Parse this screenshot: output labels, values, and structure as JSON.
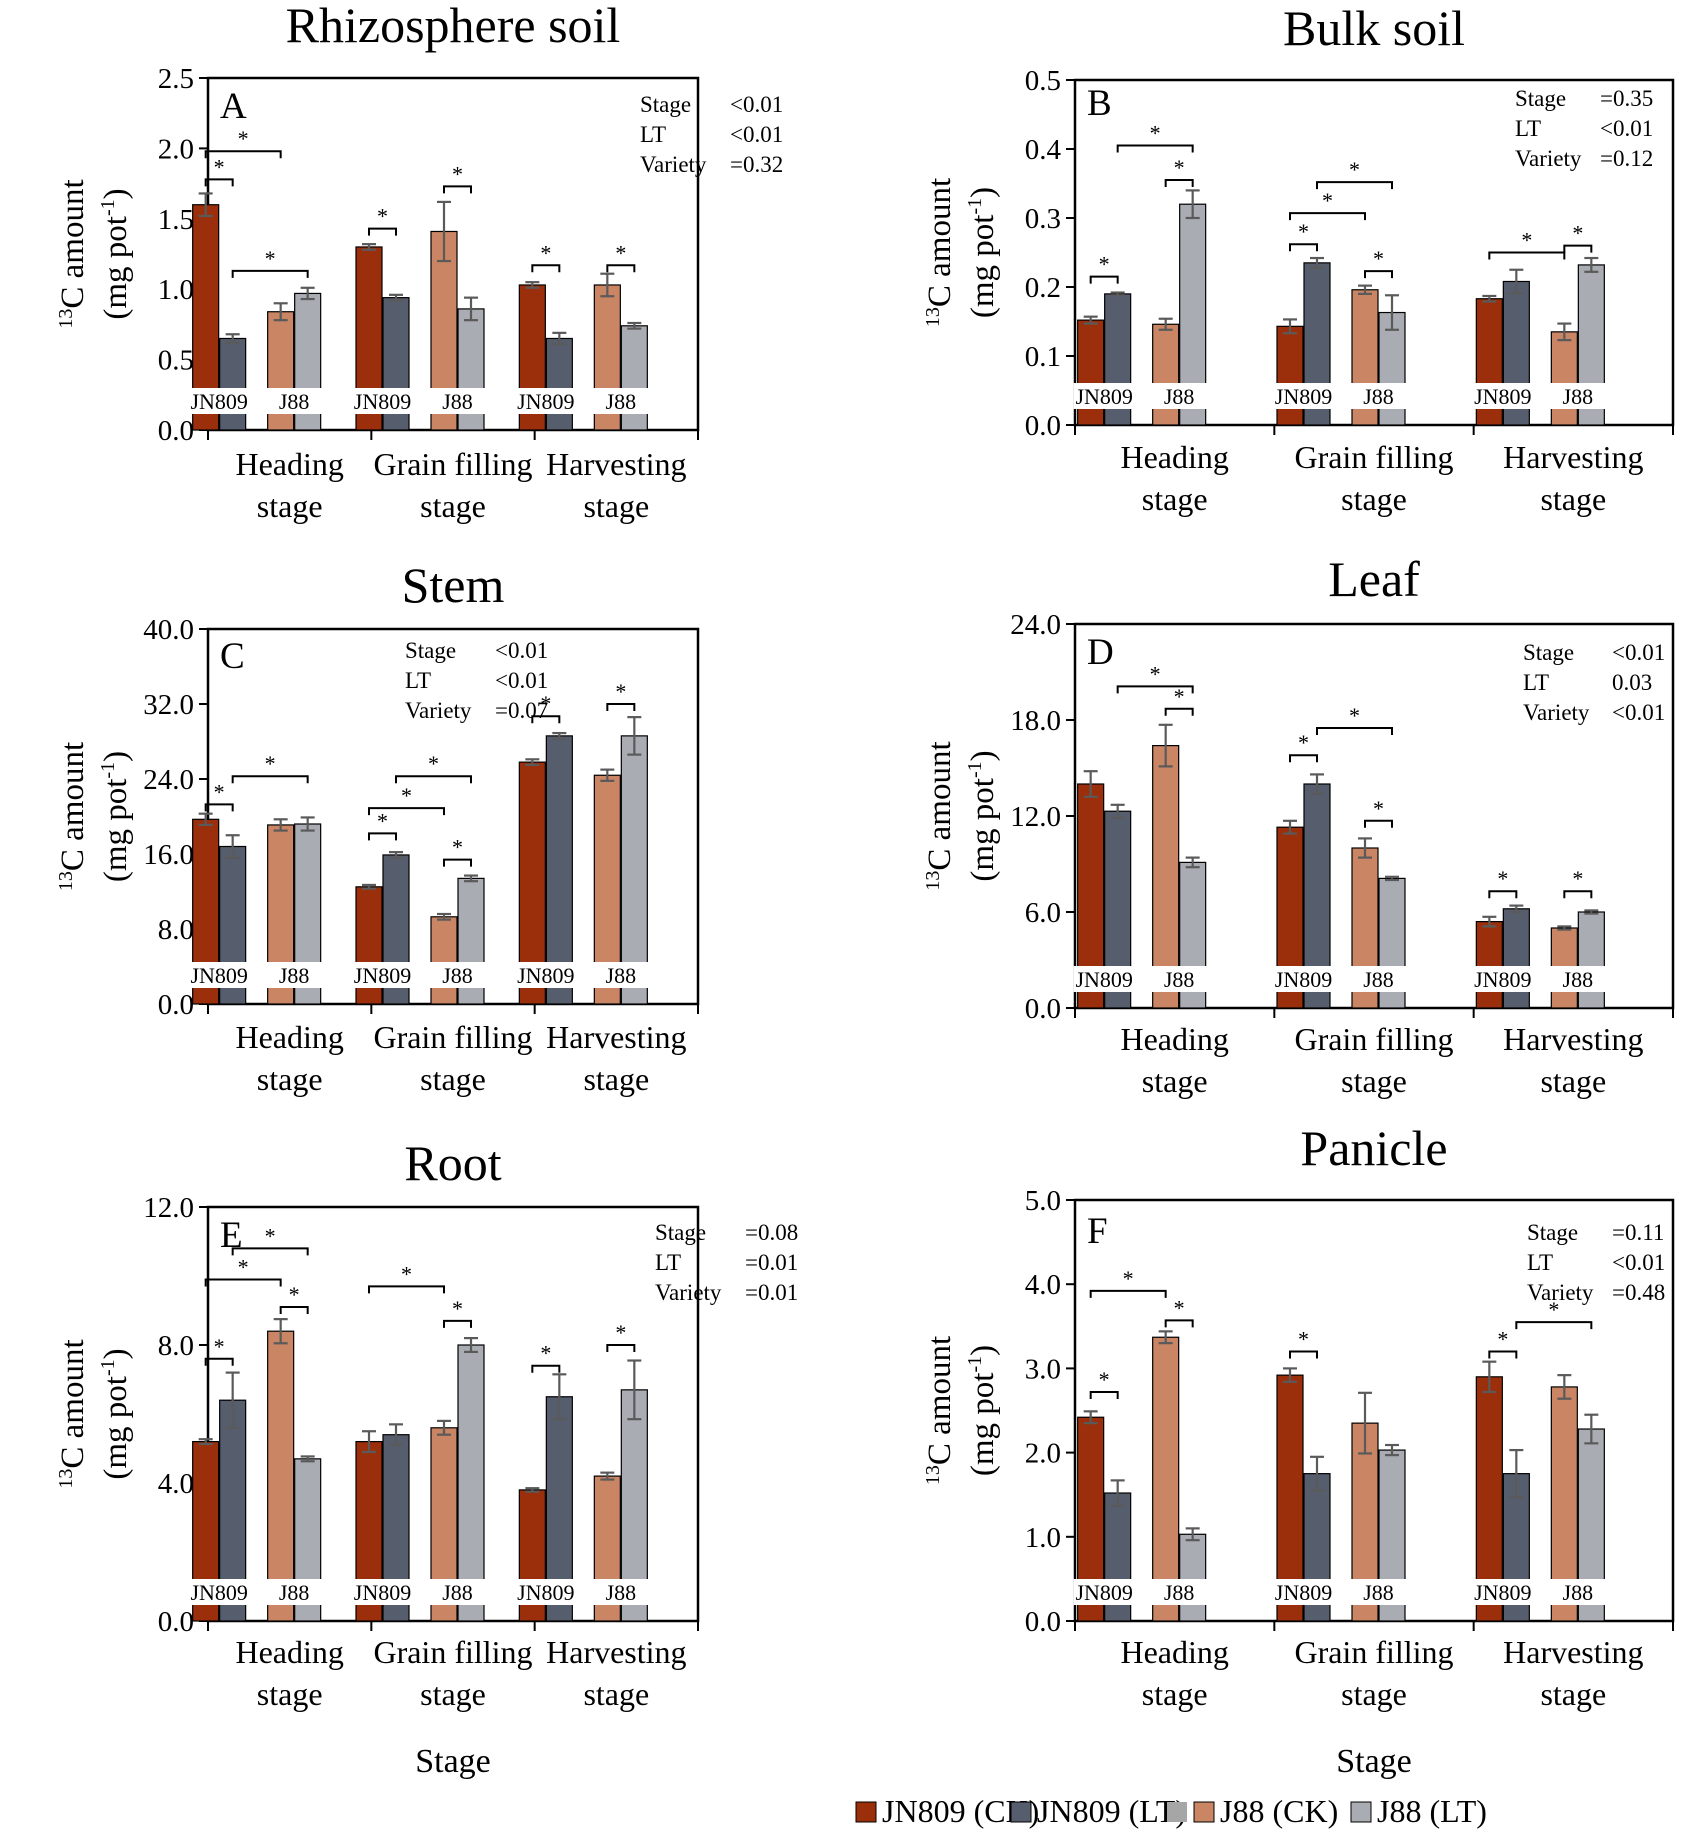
{
  "legend": [
    {
      "label": "JN809 (CK)",
      "color": "#9B2F0B"
    },
    {
      "label": "JN809 (LT)",
      "color": "#565D6D"
    },
    {
      "label": "",
      "color": "#A6A6A6"
    },
    {
      "label": "J88 (CK)",
      "color": "#C98564"
    },
    {
      "label": "J88 (LT)",
      "color": "#A9ACB3"
    }
  ],
  "chart_data": [
    {
      "type": "bar",
      "letter": "A",
      "title": "Rhizosphere soil",
      "ylabel_prefix": "13",
      "ylabel_main": "C amount",
      "ylabel_unit": "(mg pot",
      "ylabel_exp": "-1",
      "ylabel_close": ")",
      "xlabel": "",
      "ylim": [
        0,
        2.5
      ],
      "yticks": [
        "0.0",
        "0.5",
        "1.0",
        "1.5",
        "2.0",
        "2.5"
      ],
      "categories": [
        [
          "Heading",
          "stage"
        ],
        [
          "Grain filling",
          "stage"
        ],
        [
          "Harvesting",
          "stage"
        ]
      ],
      "variety_labels": [
        "JN809",
        "J88"
      ],
      "series": [
        {
          "name": "JN809 (CK)",
          "values": [
            1.6,
            1.3,
            1.03
          ],
          "errors": [
            0.08,
            0.02,
            0.02
          ]
        },
        {
          "name": "JN809 (LT)",
          "values": [
            0.65,
            0.94,
            0.65
          ],
          "errors": [
            0.03,
            0.02,
            0.04
          ]
        },
        {
          "name": "J88 (CK)",
          "values": [
            0.84,
            1.41,
            1.03
          ],
          "errors": [
            0.06,
            0.21,
            0.08
          ]
        },
        {
          "name": "J88 (LT)",
          "values": [
            0.97,
            0.86,
            0.74
          ],
          "errors": [
            0.04,
            0.08,
            0.02
          ]
        }
      ],
      "stats": [
        {
          "label": "Stage",
          "value": "<0.01"
        },
        {
          "label": "LT",
          "value": "<0.01"
        },
        {
          "label": "Variety",
          "value": "=0.32"
        }
      ],
      "significance": [
        {
          "group": 0,
          "from": 0,
          "to": 1,
          "y": 1.78,
          "label": "*"
        },
        {
          "group": 0,
          "from": 0,
          "to": 2,
          "y": 1.98,
          "label": "*"
        },
        {
          "group": 0,
          "from": 1,
          "to": 3,
          "y": 1.13,
          "label": "*"
        },
        {
          "group": 1,
          "from": 0,
          "to": 1,
          "y": 1.43,
          "label": "*"
        },
        {
          "group": 1,
          "from": 2,
          "to": 3,
          "y": 1.73,
          "label": "*"
        },
        {
          "group": 2,
          "from": 0,
          "to": 1,
          "y": 1.17,
          "label": "*"
        },
        {
          "group": 2,
          "from": 2,
          "to": 3,
          "y": 1.17,
          "label": "*"
        }
      ]
    },
    {
      "type": "bar",
      "letter": "B",
      "title": "Bulk soil",
      "ylabel_prefix": "13",
      "ylabel_main": "C amount",
      "ylabel_unit": "(mg pot",
      "ylabel_exp": "-1",
      "ylabel_close": ")",
      "xlabel": "",
      "ylim": [
        0,
        0.5
      ],
      "yticks": [
        "0.0",
        "0.1",
        "0.2",
        "0.3",
        "0.4",
        "0.5"
      ],
      "categories": [
        [
          "Heading",
          "stage"
        ],
        [
          "Grain filling",
          "stage"
        ],
        [
          "Harvesting",
          "stage"
        ]
      ],
      "variety_labels": [
        "JN809",
        "J88"
      ],
      "series": [
        {
          "name": "JN809 (CK)",
          "values": [
            0.152,
            0.143,
            0.183
          ],
          "errors": [
            0.005,
            0.01,
            0.004
          ]
        },
        {
          "name": "JN809 (LT)",
          "values": [
            0.19,
            0.235,
            0.208
          ],
          "errors": [
            0.002,
            0.007,
            0.017
          ]
        },
        {
          "name": "J88 (CK)",
          "values": [
            0.146,
            0.196,
            0.135
          ],
          "errors": [
            0.008,
            0.006,
            0.012
          ]
        },
        {
          "name": "J88 (LT)",
          "values": [
            0.32,
            0.163,
            0.232
          ],
          "errors": [
            0.02,
            0.025,
            0.01
          ]
        }
      ],
      "stats": [
        {
          "label": "Stage",
          "value": "=0.35"
        },
        {
          "label": "LT",
          "value": "<0.01"
        },
        {
          "label": "Variety",
          "value": "=0.12"
        }
      ],
      "significance": [
        {
          "group": 0,
          "from": 0,
          "to": 1,
          "y": 0.215,
          "label": "*"
        },
        {
          "group": 0,
          "from": 2,
          "to": 3,
          "y": 0.355,
          "label": "*"
        },
        {
          "group": 0,
          "from": 1,
          "to": 3,
          "y": 0.405,
          "label": "*"
        },
        {
          "group": 1,
          "from": 0,
          "to": 1,
          "y": 0.262,
          "label": "*"
        },
        {
          "group": 1,
          "from": 2,
          "to": 3,
          "y": 0.223,
          "label": "*"
        },
        {
          "group": 1,
          "from": 0,
          "to": 2,
          "y": 0.307,
          "label": "*"
        },
        {
          "group": 1,
          "from": 1,
          "to": 3,
          "y": 0.352,
          "label": "*"
        },
        {
          "group": 2,
          "from": 0,
          "to": 2,
          "y": 0.25,
          "label": "*"
        },
        {
          "group": 2,
          "from": 2,
          "to": 3,
          "y": 0.26,
          "label": "*"
        }
      ]
    },
    {
      "type": "bar",
      "letter": "C",
      "title": "Stem",
      "ylabel_prefix": "13",
      "ylabel_main": "C amount",
      "ylabel_unit": "(mg pot",
      "ylabel_exp": "-1",
      "ylabel_close": ")",
      "xlabel": "",
      "ylim": [
        0,
        40
      ],
      "yticks": [
        "0.0",
        "8.0",
        "16.0",
        "24.0",
        "32.0",
        "40.0"
      ],
      "categories": [
        [
          "Heading",
          "stage"
        ],
        [
          "Grain filling",
          "stage"
        ],
        [
          "Harvesting",
          "stage"
        ]
      ],
      "variety_labels": [
        "JN809",
        "J88"
      ],
      "series": [
        {
          "name": "JN809 (CK)",
          "values": [
            19.7,
            12.5,
            25.8
          ],
          "errors": [
            0.6,
            0.2,
            0.3
          ]
        },
        {
          "name": "JN809 (LT)",
          "values": [
            16.8,
            15.9,
            28.6
          ],
          "errors": [
            1.2,
            0.3,
            0.3
          ]
        },
        {
          "name": "J88 (CK)",
          "values": [
            19.1,
            9.3,
            24.4
          ],
          "errors": [
            0.6,
            0.3,
            0.6
          ]
        },
        {
          "name": "J88 (LT)",
          "values": [
            19.2,
            13.4,
            28.6
          ],
          "errors": [
            0.7,
            0.3,
            2.0
          ]
        }
      ],
      "stats": [
        {
          "label": "Stage",
          "value": "<0.01"
        },
        {
          "label": "LT",
          "value": "<0.01"
        },
        {
          "label": "Variety",
          "value": "=0.07"
        }
      ],
      "significance": [
        {
          "group": 0,
          "from": 0,
          "to": 1,
          "y": 21.3,
          "label": "*"
        },
        {
          "group": 0,
          "from": 1,
          "to": 3,
          "y": 24.3,
          "label": "*"
        },
        {
          "group": 1,
          "from": 0,
          "to": 1,
          "y": 18.2,
          "label": "*"
        },
        {
          "group": 1,
          "from": 0,
          "to": 2,
          "y": 20.9,
          "label": "*"
        },
        {
          "group": 1,
          "from": 1,
          "to": 3,
          "y": 24.3,
          "label": "*"
        },
        {
          "group": 1,
          "from": 2,
          "to": 3,
          "y": 15.4,
          "label": "*"
        },
        {
          "group": 2,
          "from": 0,
          "to": 1,
          "y": 30.7,
          "label": "*"
        },
        {
          "group": 2,
          "from": 2,
          "to": 3,
          "y": 32.0,
          "label": "*"
        }
      ]
    },
    {
      "type": "bar",
      "letter": "D",
      "title": "Leaf",
      "ylabel_prefix": "13",
      "ylabel_main": "C amount",
      "ylabel_unit": "(mg pot",
      "ylabel_exp": "-1",
      "ylabel_close": ")",
      "xlabel": "",
      "ylim": [
        0,
        24
      ],
      "yticks": [
        "0.0",
        "6.0",
        "12.0",
        "18.0",
        "24.0"
      ],
      "categories": [
        [
          "Heading",
          "stage"
        ],
        [
          "Grain filling",
          "stage"
        ],
        [
          "Harvesting",
          "stage"
        ]
      ],
      "variety_labels": [
        "JN809",
        "J88"
      ],
      "series": [
        {
          "name": "JN809 (CK)",
          "values": [
            14.0,
            11.3,
            5.4
          ],
          "errors": [
            0.8,
            0.4,
            0.3
          ]
        },
        {
          "name": "JN809 (LT)",
          "values": [
            12.3,
            14.0,
            6.2
          ],
          "errors": [
            0.4,
            0.6,
            0.2
          ]
        },
        {
          "name": "J88 (CK)",
          "values": [
            16.4,
            10.0,
            5.0
          ],
          "errors": [
            1.3,
            0.6,
            0.1
          ]
        },
        {
          "name": "J88 (LT)",
          "values": [
            9.1,
            8.1,
            6.0
          ],
          "errors": [
            0.3,
            0.1,
            0.1
          ]
        }
      ],
      "stats": [
        {
          "label": "Stage",
          "value": "<0.01"
        },
        {
          "label": "LT",
          "value": "0.03"
        },
        {
          "label": "Variety",
          "value": "<0.01"
        }
      ],
      "significance": [
        {
          "group": 0,
          "from": 1,
          "to": 3,
          "y": 20.1,
          "label": "*"
        },
        {
          "group": 0,
          "from": 2,
          "to": 3,
          "y": 18.7,
          "label": "*"
        },
        {
          "group": 1,
          "from": 0,
          "to": 1,
          "y": 15.8,
          "label": "*"
        },
        {
          "group": 1,
          "from": 1,
          "to": 3,
          "y": 17.5,
          "label": "*"
        },
        {
          "group": 1,
          "from": 2,
          "to": 3,
          "y": 11.7,
          "label": "*"
        },
        {
          "group": 2,
          "from": 0,
          "to": 1,
          "y": 7.3,
          "label": "*"
        },
        {
          "group": 2,
          "from": 2,
          "to": 3,
          "y": 7.3,
          "label": "*"
        }
      ]
    },
    {
      "type": "bar",
      "letter": "E",
      "title": "Root",
      "ylabel_prefix": "13",
      "ylabel_main": "C amount",
      "ylabel_unit": "(mg pot",
      "ylabel_exp": "-1",
      "ylabel_close": ")",
      "xlabel": "Stage",
      "ylim": [
        0,
        12
      ],
      "yticks": [
        "0.0",
        "4.0",
        "8.0",
        "12.0"
      ],
      "categories": [
        [
          "Heading",
          "stage"
        ],
        [
          "Grain filling",
          "stage"
        ],
        [
          "Harvesting",
          "stage"
        ]
      ],
      "variety_labels": [
        "JN809",
        "J88"
      ],
      "series": [
        {
          "name": "JN809 (CK)",
          "values": [
            5.2,
            5.2,
            3.8
          ],
          "errors": [
            0.07,
            0.3,
            0.05
          ]
        },
        {
          "name": "JN809 (LT)",
          "values": [
            6.4,
            5.4,
            6.5
          ],
          "errors": [
            0.8,
            0.3,
            0.65
          ]
        },
        {
          "name": "J88 (CK)",
          "values": [
            8.4,
            5.6,
            4.2
          ],
          "errors": [
            0.35,
            0.2,
            0.1
          ]
        },
        {
          "name": "J88 (LT)",
          "values": [
            4.7,
            8.0,
            6.7
          ],
          "errors": [
            0.07,
            0.2,
            0.85
          ]
        }
      ],
      "stats": [
        {
          "label": "Stage",
          "value": "=0.08"
        },
        {
          "label": "LT",
          "value": "=0.01"
        },
        {
          "label": "Variety",
          "value": "=0.01"
        }
      ],
      "significance": [
        {
          "group": 0,
          "from": 0,
          "to": 1,
          "y": 7.6,
          "label": "*"
        },
        {
          "group": 0,
          "from": 0,
          "to": 2,
          "y": 9.9,
          "label": "*"
        },
        {
          "group": 0,
          "from": 1,
          "to": 3,
          "y": 10.8,
          "label": "*"
        },
        {
          "group": 0,
          "from": 2,
          "to": 3,
          "y": 9.1,
          "label": "*"
        },
        {
          "group": 1,
          "from": 0,
          "to": 2,
          "y": 9.7,
          "label": "*"
        },
        {
          "group": 1,
          "from": 2,
          "to": 3,
          "y": 8.7,
          "label": "*"
        },
        {
          "group": 2,
          "from": 0,
          "to": 1,
          "y": 7.4,
          "label": "*"
        },
        {
          "group": 2,
          "from": 2,
          "to": 3,
          "y": 8.0,
          "label": "*"
        }
      ]
    },
    {
      "type": "bar",
      "letter": "F",
      "title": "Panicle",
      "ylabel_prefix": "13",
      "ylabel_main": "C amount",
      "ylabel_unit": "(mg pot",
      "ylabel_exp": "-1",
      "ylabel_close": ")",
      "xlabel": "Stage",
      "ylim": [
        0,
        5
      ],
      "yticks": [
        "0.0",
        "1.0",
        "2.0",
        "3.0",
        "4.0",
        "5.0"
      ],
      "categories": [
        [
          "Heading",
          "stage"
        ],
        [
          "Grain filling",
          "stage"
        ],
        [
          "Harvesting",
          "stage"
        ]
      ],
      "variety_labels": [
        "JN809",
        "J88"
      ],
      "series": [
        {
          "name": "JN809 (CK)",
          "values": [
            2.42,
            2.92,
            2.9
          ],
          "errors": [
            0.07,
            0.08,
            0.18
          ]
        },
        {
          "name": "JN809 (LT)",
          "values": [
            1.52,
            1.75,
            1.75
          ],
          "errors": [
            0.15,
            0.2,
            0.28
          ]
        },
        {
          "name": "J88 (CK)",
          "values": [
            3.37,
            2.35,
            2.78
          ],
          "errors": [
            0.07,
            0.36,
            0.14
          ]
        },
        {
          "name": "J88 (LT)",
          "values": [
            1.03,
            2.03,
            2.28
          ],
          "errors": [
            0.07,
            0.06,
            0.17
          ]
        }
      ],
      "stats": [
        {
          "label": "Stage",
          "value": "=0.11"
        },
        {
          "label": "LT",
          "value": "<0.01"
        },
        {
          "label": "Variety",
          "value": "=0.48"
        }
      ],
      "significance": [
        {
          "group": 0,
          "from": 0,
          "to": 1,
          "y": 2.72,
          "label": "*"
        },
        {
          "group": 0,
          "from": 0,
          "to": 2,
          "y": 3.92,
          "label": "*"
        },
        {
          "group": 0,
          "from": 2,
          "to": 3,
          "y": 3.57,
          "label": "*"
        },
        {
          "group": 1,
          "from": 0,
          "to": 1,
          "y": 3.2,
          "label": "*"
        },
        {
          "group": 2,
          "from": 0,
          "to": 1,
          "y": 3.2,
          "label": "*"
        },
        {
          "group": 2,
          "from": 1,
          "to": 3,
          "y": 3.55,
          "label": "*"
        }
      ]
    }
  ]
}
